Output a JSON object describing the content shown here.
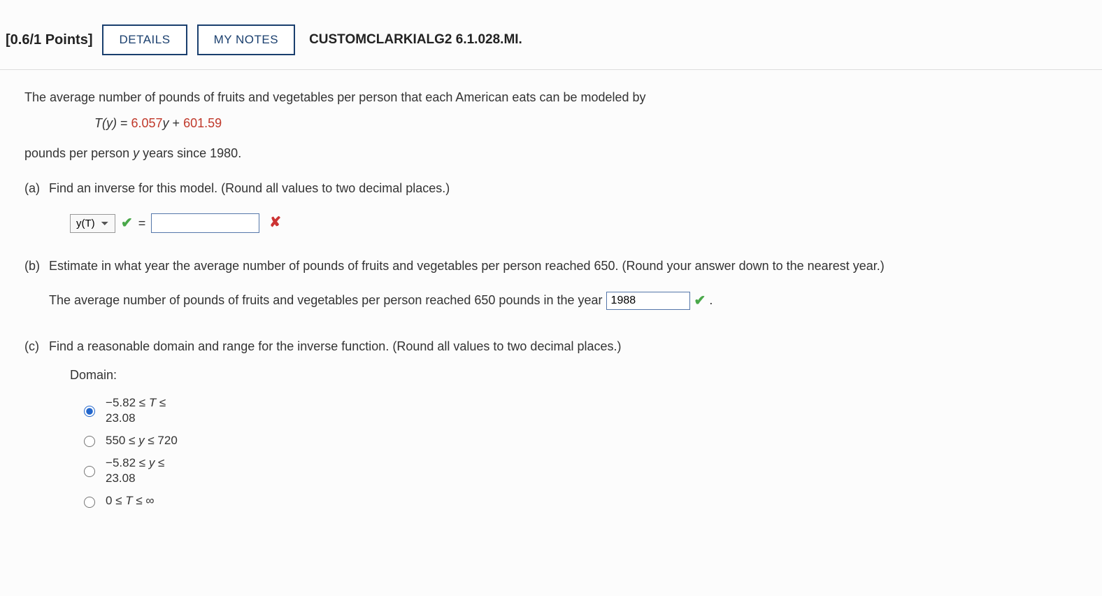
{
  "header": {
    "points": "[0.6/1 Points]",
    "details_btn": "DETAILS",
    "notes_btn": "MY NOTES",
    "problem_id": "CUSTOMCLARKIALG2 6.1.028.MI."
  },
  "question": {
    "intro": "The average number of pounds of fruits and vegetables per person that each American eats can be modeled by",
    "formula_fn": "T(y)",
    "formula_eq": " = ",
    "formula_coef": "6.057",
    "formula_var": "y",
    "formula_plus": " + ",
    "formula_const": "601.59",
    "context": "pounds per person y years since 1980."
  },
  "part_a": {
    "label": "(a)",
    "prompt": "Find an inverse for this model. (Round all values to two decimal places.)",
    "select_value": "y(T)",
    "eq": "=",
    "input_value": ""
  },
  "part_b": {
    "label": "(b)",
    "prompt": "Estimate in what year the average number of pounds of fruits and vegetables per person reached 650. (Round your answer down to the nearest year.)",
    "answer_lead": "The average number of pounds of fruits and vegetables per person reached 650 pounds in the year ",
    "input_value": "1988",
    "trail": "."
  },
  "part_c": {
    "label": "(c)",
    "prompt": "Find a reasonable domain and range for the inverse function. (Round all values to two decimal places.)",
    "domain_label": "Domain:",
    "selected": 0,
    "choices": [
      "−5.82 ≤ T ≤ 23.08",
      "550 ≤ y ≤ 720",
      "−5.82 ≤ y ≤ 23.08",
      "0 ≤ T ≤ ∞"
    ]
  },
  "colors": {
    "accent": "#c0392b",
    "btn_border": "#1a3f6e",
    "correct": "#4aa84a",
    "wrong": "#cc3333"
  }
}
